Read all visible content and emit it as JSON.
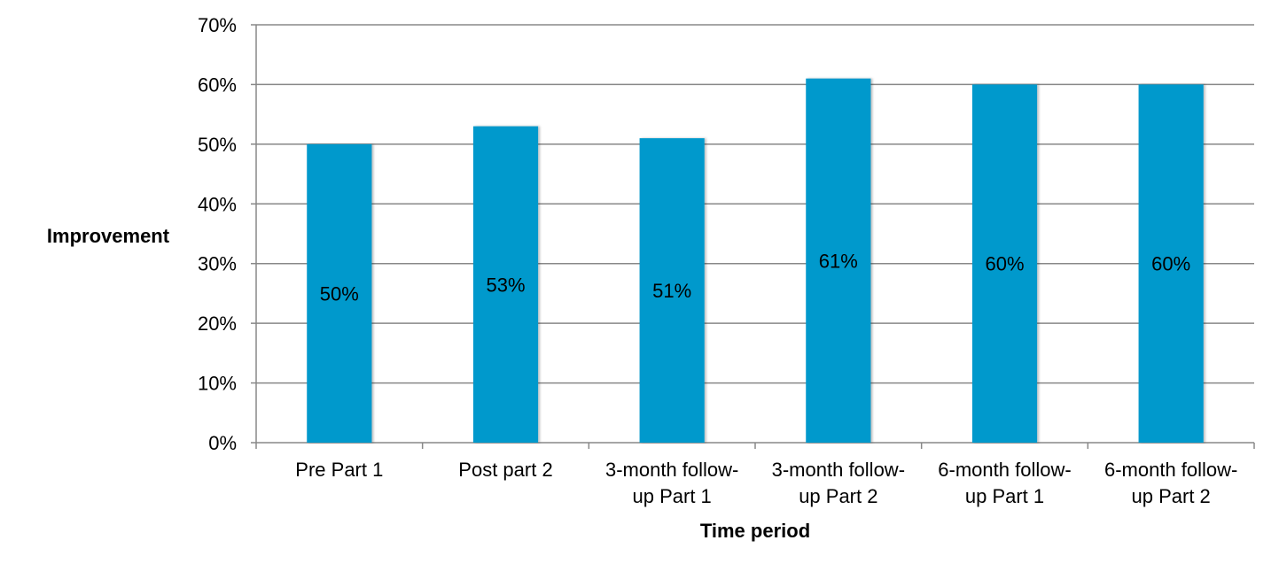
{
  "chart_data": {
    "type": "bar",
    "title": "",
    "xlabel": "Time period",
    "ylabel": "Improvement",
    "categories": [
      [
        "Pre Part 1"
      ],
      [
        "Post part 2"
      ],
      [
        "3-month follow-",
        "up Part 1"
      ],
      [
        "3-month follow-",
        "up Part 2"
      ],
      [
        "6-month follow-",
        "up Part 1"
      ],
      [
        "6-month follow-",
        "up Part 2"
      ]
    ],
    "values": [
      50,
      53,
      51,
      61,
      60,
      60
    ],
    "value_labels": [
      "50%",
      "53%",
      "51%",
      "61%",
      "60%",
      "60%"
    ],
    "ylim": [
      0,
      70
    ],
    "yticks": [
      0,
      10,
      20,
      30,
      40,
      50,
      60,
      70
    ],
    "ytick_labels": [
      "0%",
      "10%",
      "20%",
      "30%",
      "40%",
      "50%",
      "60%",
      "70%"
    ],
    "grid": true,
    "legend": "none",
    "colors": {
      "bar": "#0099CC",
      "grid": "#888888",
      "axis": "#888888"
    }
  }
}
